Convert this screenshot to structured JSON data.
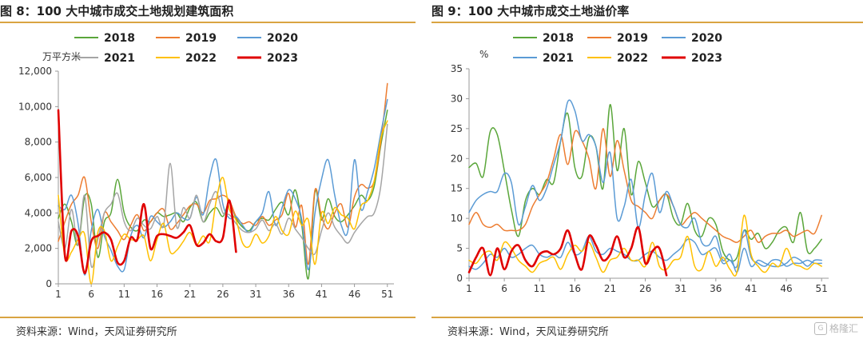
{
  "figures": [
    {
      "title": "图 8：100 大中城市成交土地规划建筑面积",
      "source": "资料来源：Wind，天风证券研究所"
    },
    {
      "title": "图 9：100 大中城市成交土地溢价率",
      "source": "资料来源：Wind，天风证券研究所"
    }
  ],
  "watermark": {
    "label": "格隆汇",
    "icon": "glh-logo-icon"
  },
  "chart_data": [
    {
      "type": "line",
      "ylabel": "万平方米",
      "ylim": [
        0,
        12000
      ],
      "yticks": [
        0,
        2000,
        4000,
        6000,
        8000,
        10000,
        12000
      ],
      "ytick_labels": [
        "0",
        "2,000",
        "4,000",
        "6,000",
        "8,000",
        "10,000",
        "12,000"
      ],
      "xlim": [
        1,
        52
      ],
      "xticks": [
        1,
        6,
        11,
        16,
        21,
        26,
        31,
        36,
        41,
        46,
        51
      ],
      "legend_position": "top",
      "series": [
        {
          "name": "2018",
          "color": "#5aa63a",
          "width": 1.5,
          "values": [
            3700,
            4500,
            3500,
            2200,
            4900,
            4500,
            1500,
            3500,
            4000,
            5900,
            4000,
            3200,
            3000,
            3600,
            3500,
            4000,
            3800,
            3900,
            4000,
            3500,
            4300,
            4600,
            3500,
            4000,
            4300,
            3800,
            4600,
            3700,
            3200,
            3000,
            3500,
            3700,
            3600,
            4200,
            4600,
            3900,
            5300,
            3300,
            300,
            5200,
            3600,
            4800,
            3800,
            3500,
            3900,
            4400,
            5000,
            4700,
            5500,
            7800,
            9800
          ]
        },
        {
          "name": "2019",
          "color": "#ed7d31",
          "width": 1.5,
          "values": [
            2400,
            3500,
            4500,
            5000,
            6000,
            3500,
            2000,
            4000,
            3500,
            3000,
            2500,
            3300,
            3900,
            3000,
            3500,
            4000,
            4200,
            3100,
            3400,
            3900,
            4400,
            4500,
            4000,
            4700,
            4800,
            5000,
            4700,
            3800,
            3400,
            3500,
            3300,
            3800,
            3300,
            3600,
            3900,
            5100,
            3200,
            4400,
            1100,
            5300,
            3800,
            3100,
            4000,
            4500,
            3200,
            4900,
            5600,
            5400,
            5800,
            8000,
            11300
          ]
        },
        {
          "name": "2020",
          "color": "#5b9bd5",
          "width": 1.5,
          "values": [
            4400,
            4200,
            5000,
            3400,
            500,
            3000,
            4200,
            2700,
            1900,
            1000,
            800,
            2700,
            3300,
            2600,
            3800,
            3500,
            3200,
            3500,
            4000,
            3700,
            3700,
            4900,
            3900,
            6000,
            7000,
            4500,
            3700,
            3800,
            3300,
            2900,
            3500,
            4000,
            5200,
            3300,
            4300,
            5300,
            4800,
            3600,
            800,
            4000,
            5900,
            7000,
            5000,
            3300,
            3000,
            7000,
            4200,
            5200,
            6500,
            8500,
            10400
          ]
        },
        {
          "name": "2021",
          "color": "#a5a5a5",
          "width": 1.5,
          "values": [
            3500,
            2000,
            4200,
            2200,
            5000,
            1000,
            2500,
            4000,
            4500,
            5100,
            3500,
            3000,
            3700,
            3300,
            3100,
            3800,
            3300,
            6800,
            3200,
            4300,
            3700,
            5000,
            3500,
            4500,
            5200,
            4000,
            3900,
            3400,
            3000,
            2900,
            3100,
            3600,
            3000,
            3400,
            2800,
            3700,
            3100,
            2600,
            2000,
            1700,
            3000,
            4000,
            3200,
            2700,
            2300,
            2900,
            3400,
            3800,
            4000,
            5500,
            9000
          ]
        },
        {
          "name": "2022",
          "color": "#ffc000",
          "width": 1.5,
          "values": [
            5000,
            1500,
            1800,
            2500,
            2800,
            0,
            2900,
            3000,
            1300,
            2100,
            2800,
            2500,
            2500,
            2700,
            1300,
            2500,
            3400,
            1800,
            1900,
            2400,
            2900,
            2200,
            2700,
            2400,
            4700,
            6000,
            4200,
            3600,
            2300,
            2100,
            2800,
            2300,
            2700,
            3800,
            3000,
            2800,
            4100,
            3300,
            3600,
            1100,
            4000,
            3400,
            4300,
            3900,
            3700,
            3100,
            4400,
            4700,
            5800,
            8200,
            9200
          ]
        },
        {
          "name": "2023",
          "color": "#e00000",
          "width": 2.6,
          "values": [
            9800,
            1600,
            3000,
            2700,
            600,
            2400,
            2700,
            2900,
            2500,
            1200,
            1300,
            2600,
            2500,
            4500,
            2000,
            2700,
            2800,
            2700,
            2600,
            2900,
            3300,
            2200,
            2300,
            2800,
            2400,
            2600,
            4700,
            1800
          ]
        }
      ]
    },
    {
      "type": "line",
      "ylabel": "%",
      "ylim": [
        0,
        35
      ],
      "yticks": [
        0,
        5,
        10,
        15,
        20,
        25,
        30,
        35
      ],
      "ytick_labels": [
        "0",
        "5",
        "10",
        "15",
        "20",
        "25",
        "30",
        "35"
      ],
      "xlim": [
        1,
        52
      ],
      "xticks": [
        1,
        6,
        11,
        16,
        21,
        26,
        31,
        36,
        41,
        46,
        51
      ],
      "legend_position": "top",
      "series": [
        {
          "name": "2018",
          "color": "#5aa63a",
          "width": 1.5,
          "values": [
            18.5,
            19.2,
            17.0,
            24.5,
            24.0,
            18.0,
            11.5,
            7.0,
            13.0,
            15.0,
            14.0,
            16.5,
            16.0,
            23.0,
            27.5,
            18.5,
            17.0,
            23.5,
            22.0,
            15.0,
            29.0,
            18.0,
            25.0,
            14.0,
            19.5,
            16.0,
            12.0,
            13.0,
            14.0,
            10.0,
            9.0,
            12.5,
            8.0,
            7.0,
            10.0,
            9.0,
            4.5,
            3.0,
            3.5,
            8.0,
            6.5,
            7.5,
            5.0,
            6.0,
            8.0,
            8.5,
            6.0,
            11.0,
            4.5,
            5.0,
            6.5
          ]
        },
        {
          "name": "2019",
          "color": "#ed7d31",
          "width": 1.5,
          "values": [
            9.0,
            11.0,
            9.0,
            8.5,
            9.0,
            8.0,
            8.0,
            8.0,
            9.0,
            12.0,
            14.0,
            16.0,
            20.0,
            24.0,
            19.0,
            24.5,
            23.0,
            20.0,
            15.0,
            25.0,
            17.0,
            23.0,
            18.0,
            13.0,
            12.0,
            11.0,
            10.0,
            13.0,
            14.0,
            12.0,
            9.0,
            10.0,
            11.0,
            10.0,
            9.0,
            8.0,
            7.0,
            6.5,
            6.0,
            7.0,
            8.0,
            6.0,
            7.0,
            7.5,
            7.5,
            8.0,
            7.0,
            7.5,
            8.0,
            7.5,
            10.5
          ]
        },
        {
          "name": "2020",
          "color": "#5b9bd5",
          "width": 1.5,
          "values": [
            11.0,
            13.0,
            14.0,
            14.5,
            14.5,
            17.5,
            16.0,
            9.0,
            12.0,
            15.5,
            13.0,
            15.0,
            19.0,
            23.0,
            29.5,
            28.0,
            23.0,
            24.0,
            22.0,
            16.0,
            21.0,
            10.0,
            12.0,
            16.5,
            8.5,
            14.0,
            17.5,
            11.0,
            14.5,
            12.0,
            9.0,
            8.5,
            10.0,
            6.0,
            5.5,
            7.0,
            3.0,
            4.0,
            1.0,
            5.0,
            2.0,
            3.0,
            2.5,
            2.0,
            2.0,
            2.5,
            3.5,
            3.0,
            2.0,
            3.0,
            3.0
          ]
        },
        {
          "name": "2021",
          "color": "#5b9bd5",
          "width": 1.5,
          "values": [
            2.0,
            1.5,
            2.5,
            4.0,
            3.5,
            5.0,
            3.5,
            4.0,
            5.0,
            5.5,
            4.0,
            3.5,
            4.0,
            3.5,
            6.0,
            4.0,
            4.5,
            7.0,
            4.5,
            4.0,
            5.0,
            4.5,
            4.0,
            3.0,
            3.0,
            4.0,
            4.5,
            3.5,
            3.0,
            4.0,
            5.0,
            6.5,
            6.0,
            4.0,
            4.5,
            5.0,
            2.5,
            3.0,
            2.0,
            8.0,
            3.5,
            2.5,
            2.0,
            3.0,
            3.0,
            2.0,
            2.5,
            2.5,
            3.0,
            2.5,
            2.5
          ]
        },
        {
          "name": "2022",
          "color": "#ffc000",
          "width": 1.5,
          "values": [
            3.0,
            2.5,
            4.0,
            4.5,
            3.0,
            6.0,
            5.0,
            3.0,
            2.0,
            1.0,
            2.5,
            3.0,
            3.5,
            1.5,
            4.0,
            5.5,
            4.5,
            6.0,
            3.5,
            1.0,
            3.0,
            3.5,
            5.0,
            3.0,
            3.0,
            2.0,
            6.0,
            2.0,
            1.5,
            3.0,
            3.5,
            7.0,
            2.0,
            1.5,
            4.5,
            2.0,
            3.5,
            1.5,
            1.0,
            10.5,
            4.0,
            2.0,
            1.0,
            2.5,
            2.0,
            5.0,
            2.5,
            2.0,
            1.5,
            2.5,
            2.0
          ]
        },
        {
          "name": "2023",
          "color": "#e00000",
          "width": 2.6,
          "values": [
            1.0,
            3.5,
            5.0,
            0.5,
            5.0,
            1.5,
            4.5,
            5.5,
            3.0,
            2.0,
            4.0,
            4.5,
            4.0,
            5.0,
            8.0,
            4.0,
            1.5,
            7.0,
            5.5,
            3.0,
            4.0,
            7.0,
            3.5,
            5.0,
            8.5,
            2.5,
            4.5,
            5.0,
            0.5
          ]
        }
      ]
    }
  ]
}
